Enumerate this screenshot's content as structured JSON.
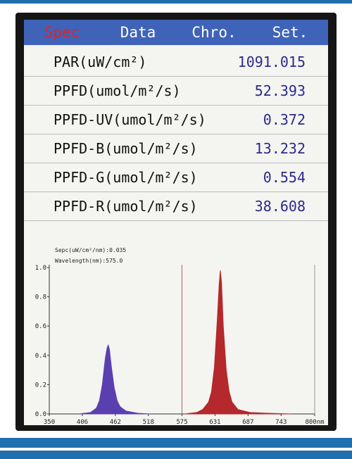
{
  "tabs": [
    "Spec",
    "Data",
    "Chro.",
    "Set."
  ],
  "table": {
    "rows": [
      [
        "PAR(uW/cm²)",
        "1091.015"
      ],
      [
        "PPFD(umol/m²/s)",
        "52.393"
      ],
      [
        "PPFD-UV(umol/m²/s)",
        "0.372"
      ],
      [
        "PPFD-B(umol/m²/s)",
        "13.232"
      ],
      [
        "PPFD-G(umol/m²/s)",
        "0.554"
      ],
      [
        "PPFD-R(umol/m²/s)",
        "38.608"
      ]
    ]
  },
  "spectrum": {
    "type": "area",
    "info": [
      "Sepc(uW/cm²/nm):0.035",
      "Wavelength(nm):575.0"
    ],
    "cursor": 575,
    "xlim": [
      350,
      800
    ],
    "ylim": [
      0,
      1
    ],
    "xticks": [
      350,
      406,
      462,
      518,
      575,
      631,
      687,
      743,
      {
        "value": 800,
        "label": "800nm"
      }
    ],
    "yticks": [
      {
        "value": 0,
        "label": "0.0"
      },
      {
        "value": 0.2,
        "label": "0.2"
      },
      {
        "value": 0.4,
        "label": "0.4"
      },
      {
        "value": 0.6,
        "label": "0.6"
      },
      {
        "value": 0.8,
        "label": "0.8"
      },
      {
        "value": 1,
        "label": "1.0"
      }
    ],
    "series": [
      {
        "color": "#5a3fb0",
        "x": [
          400,
          420,
          430,
          435,
          440,
          445,
          448,
          450,
          452,
          455,
          460,
          465,
          470,
          480,
          500,
          520
        ],
        "values": [
          0,
          0.01,
          0.04,
          0.09,
          0.2,
          0.38,
          0.45,
          0.47,
          0.44,
          0.33,
          0.18,
          0.09,
          0.05,
          0.02,
          0.005,
          0
        ]
      },
      {
        "color": "#b5282b",
        "x": [
          580,
          600,
          610,
          620,
          625,
          630,
          635,
          638,
          640,
          642,
          645,
          650,
          655,
          660,
          670,
          690,
          720,
          760
        ],
        "values": [
          0,
          0.01,
          0.03,
          0.08,
          0.15,
          0.32,
          0.65,
          0.88,
          0.98,
          0.9,
          0.6,
          0.3,
          0.15,
          0.08,
          0.03,
          0.01,
          0.005,
          0
        ]
      }
    ]
  }
}
